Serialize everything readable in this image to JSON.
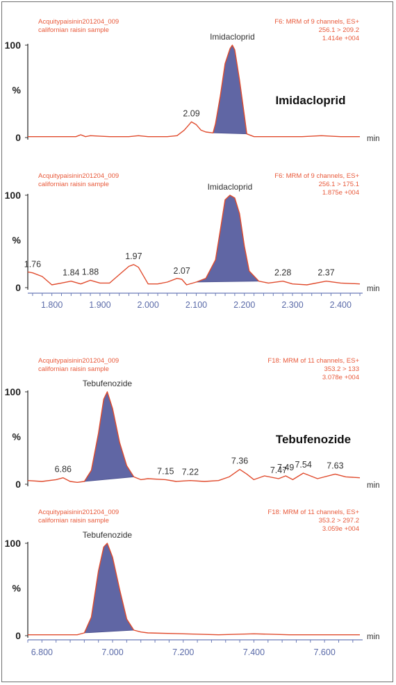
{
  "chart_data": [
    {
      "type": "line",
      "header_left": [
        "Acquitypaisinin201204_009",
        "californian raisin sample"
      ],
      "header_right": [
        "F6: MRM of 9 channels, ES+",
        "256.1 > 209.2",
        "1.414e +004"
      ],
      "compound_label": "Imidacloprid",
      "side_title": "Imidacloprid",
      "y_ticks": [
        "100",
        "%",
        "0"
      ],
      "x_unit": "min",
      "xlim": [
        1.75,
        2.44
      ],
      "ylim": [
        0,
        100
      ],
      "peak_labels": [
        {
          "x": 2.09,
          "text": "2.09"
        }
      ],
      "filled_peak": {
        "start": 2.135,
        "end": 2.205
      },
      "x": [
        1.75,
        1.8,
        1.85,
        1.86,
        1.87,
        1.88,
        1.92,
        1.96,
        1.98,
        2.0,
        2.04,
        2.06,
        2.075,
        2.085,
        2.09,
        2.1,
        2.11,
        2.12,
        2.135,
        2.14,
        2.15,
        2.16,
        2.17,
        2.175,
        2.18,
        2.19,
        2.2,
        2.205,
        2.22,
        2.28,
        2.32,
        2.36,
        2.4,
        2.44
      ],
      "values": [
        1,
        1,
        1,
        3,
        1,
        2,
        1,
        1,
        2,
        1,
        1,
        2,
        8,
        14,
        17,
        14,
        8,
        6,
        5,
        15,
        45,
        80,
        96,
        100,
        95,
        62,
        24,
        4,
        1,
        1,
        1,
        2,
        1,
        1
      ]
    },
    {
      "type": "line",
      "header_left": [
        "Acquitypaisinin201204_009",
        "californian raisin sample"
      ],
      "header_right": [
        "F6: MRM of 9 channels, ES+",
        "256.1 > 175.1",
        "1.875e +004"
      ],
      "compound_label": "Imidacloprid",
      "y_ticks": [
        "100",
        "%",
        "0"
      ],
      "x_unit": "min",
      "xlim": [
        1.75,
        2.44
      ],
      "ylim": [
        0,
        100
      ],
      "x_tick_labels": [
        "1.800",
        "1.900",
        "2.000",
        "2.100",
        "2.200",
        "2.300",
        "2.400"
      ],
      "peak_labels": [
        {
          "x": 1.76,
          "text": "1.76"
        },
        {
          "x": 1.84,
          "text": "1.84"
        },
        {
          "x": 1.88,
          "text": "1.88"
        },
        {
          "x": 1.97,
          "text": "1.97"
        },
        {
          "x": 2.07,
          "text": "2.07"
        },
        {
          "x": 2.28,
          "text": "2.28"
        },
        {
          "x": 2.37,
          "text": "2.37"
        }
      ],
      "filled_peak": {
        "start": 2.1,
        "end": 2.23
      },
      "x": [
        1.75,
        1.76,
        1.78,
        1.8,
        1.82,
        1.84,
        1.86,
        1.88,
        1.9,
        1.92,
        1.94,
        1.96,
        1.97,
        1.98,
        2.0,
        2.02,
        2.04,
        2.06,
        2.07,
        2.08,
        2.1,
        2.12,
        2.14,
        2.15,
        2.16,
        2.17,
        2.18,
        2.19,
        2.2,
        2.21,
        2.23,
        2.25,
        2.28,
        2.3,
        2.33,
        2.37,
        2.4,
        2.44
      ],
      "values": [
        17,
        16,
        12,
        3,
        5,
        7,
        4,
        8,
        5,
        5,
        14,
        23,
        25,
        22,
        4,
        4,
        6,
        10,
        9,
        3,
        6,
        10,
        30,
        62,
        95,
        100,
        97,
        80,
        45,
        18,
        7,
        5,
        7,
        4,
        3,
        7,
        5,
        4
      ]
    },
    {
      "type": "line",
      "header_left": [
        "Acquitypaisinin201204_009",
        "californian raisin sample"
      ],
      "header_right": [
        "F18: MRM of 11 channels, ES+",
        "353.2 > 133",
        "3.078e +004"
      ],
      "compound_label": "Tebufenozide",
      "side_title": "Tebufenozide",
      "y_ticks": [
        "100",
        "%",
        "0"
      ],
      "x_unit": "min",
      "xlim": [
        6.76,
        7.7
      ],
      "ylim": [
        0,
        100
      ],
      "peak_labels": [
        {
          "x": 6.86,
          "text": "6.86"
        },
        {
          "x": 7.15,
          "text": "7.15"
        },
        {
          "x": 7.22,
          "text": "7.22"
        },
        {
          "x": 7.36,
          "text": "7.36"
        },
        {
          "x": 7.47,
          "text": "7.47"
        },
        {
          "x": 7.49,
          "text": "7.49"
        },
        {
          "x": 7.54,
          "text": "7.54"
        },
        {
          "x": 7.63,
          "text": "7.63"
        }
      ],
      "filled_peak": {
        "start": 6.92,
        "end": 7.06
      },
      "x": [
        6.76,
        6.8,
        6.84,
        6.86,
        6.88,
        6.9,
        6.92,
        6.94,
        6.96,
        6.975,
        6.985,
        7.0,
        7.02,
        7.04,
        7.06,
        7.08,
        7.1,
        7.15,
        7.18,
        7.22,
        7.26,
        7.3,
        7.33,
        7.36,
        7.38,
        7.4,
        7.43,
        7.47,
        7.49,
        7.51,
        7.54,
        7.58,
        7.63,
        7.66,
        7.7
      ],
      "values": [
        4,
        3,
        5,
        7,
        3,
        2,
        3,
        15,
        55,
        92,
        100,
        82,
        45,
        20,
        8,
        5,
        6,
        5,
        3,
        4,
        3,
        4,
        8,
        16,
        11,
        5,
        9,
        6,
        9,
        5,
        12,
        6,
        11,
        8,
        7
      ]
    },
    {
      "type": "line",
      "header_left": [
        "Acquitypaisinin201204_009",
        "californian raisin sample"
      ],
      "header_right": [
        "F18: MRM of 11 channels, ES+",
        "353.2 > 297.2",
        "3.059e +004"
      ],
      "compound_label": "Tebufenozide",
      "y_ticks": [
        "100",
        "%",
        "0"
      ],
      "x_unit": "min",
      "xlim": [
        6.76,
        7.7
      ],
      "ylim": [
        0,
        100
      ],
      "x_tick_labels": [
        "6.800",
        "7.000",
        "7.200",
        "7.400",
        "7.600"
      ],
      "filled_peak": {
        "start": 6.92,
        "end": 7.06
      },
      "x": [
        6.76,
        6.8,
        6.85,
        6.9,
        6.92,
        6.94,
        6.96,
        6.975,
        6.985,
        7.0,
        7.02,
        7.04,
        7.06,
        7.08,
        7.1,
        7.2,
        7.3,
        7.4,
        7.5,
        7.6,
        7.7
      ],
      "values": [
        1,
        1,
        1,
        1,
        3,
        20,
        70,
        96,
        100,
        85,
        50,
        18,
        6,
        4,
        3,
        2,
        1,
        2,
        1,
        1,
        1
      ]
    }
  ]
}
